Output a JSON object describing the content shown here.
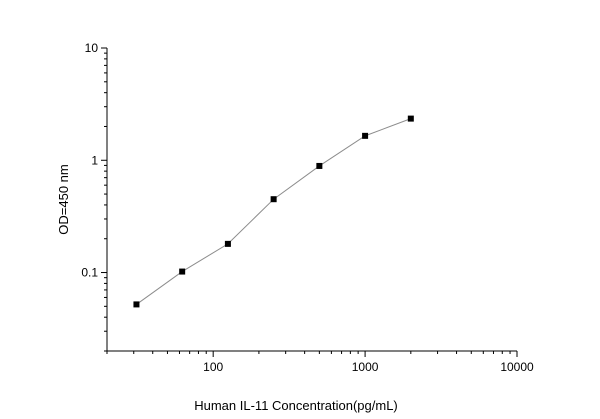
{
  "chart_data": {
    "type": "line",
    "title": "",
    "xlabel": "Human IL-11 Concentration(pg/mL)",
    "ylabel": "OD=450 nm",
    "xscale": "log",
    "yscale": "log",
    "xlim": [
      20,
      10000
    ],
    "ylim": [
      0.02,
      10
    ],
    "x_ticks": [
      "100",
      "1000",
      "10000"
    ],
    "y_ticks": [
      "0.1",
      "1",
      "10"
    ],
    "grid": false,
    "legend": "none",
    "series": [
      {
        "x": [
          31.25,
          62.5,
          125,
          250,
          500,
          1000,
          2000
        ],
        "y": [
          0.052,
          0.102,
          0.18,
          0.45,
          0.89,
          1.65,
          2.35
        ],
        "marker": "square",
        "line_color": "#8c8c8c",
        "marker_color": "#000000"
      }
    ]
  }
}
